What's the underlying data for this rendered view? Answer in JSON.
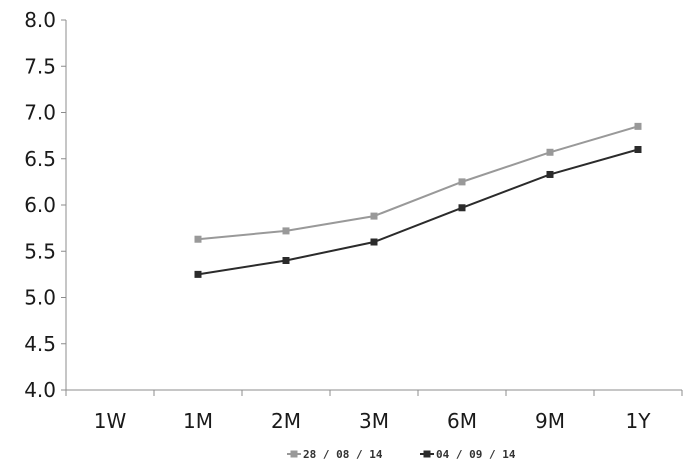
{
  "chart_data": {
    "type": "line",
    "title": "",
    "xlabel": "",
    "ylabel": "",
    "categories": [
      "1W",
      "1M",
      "2M",
      "3M",
      "6M",
      "9M",
      "1Y"
    ],
    "ylim": [
      4.0,
      8.0
    ],
    "yticks": [
      "4.0",
      "4.5",
      "5.0",
      "5.5",
      "6.0",
      "6.5",
      "7.0",
      "7.5",
      "8.0"
    ],
    "grid": false,
    "legend": "bottom",
    "series": [
      {
        "name": "28 / 08 / 14",
        "color": "#999999",
        "values": [
          null,
          5.63,
          5.72,
          5.88,
          6.25,
          6.57,
          6.85
        ]
      },
      {
        "name": "04 / 09 / 14",
        "color": "#2b2b2b",
        "values": [
          null,
          5.25,
          5.4,
          5.6,
          5.97,
          6.33,
          6.6
        ]
      }
    ]
  }
}
